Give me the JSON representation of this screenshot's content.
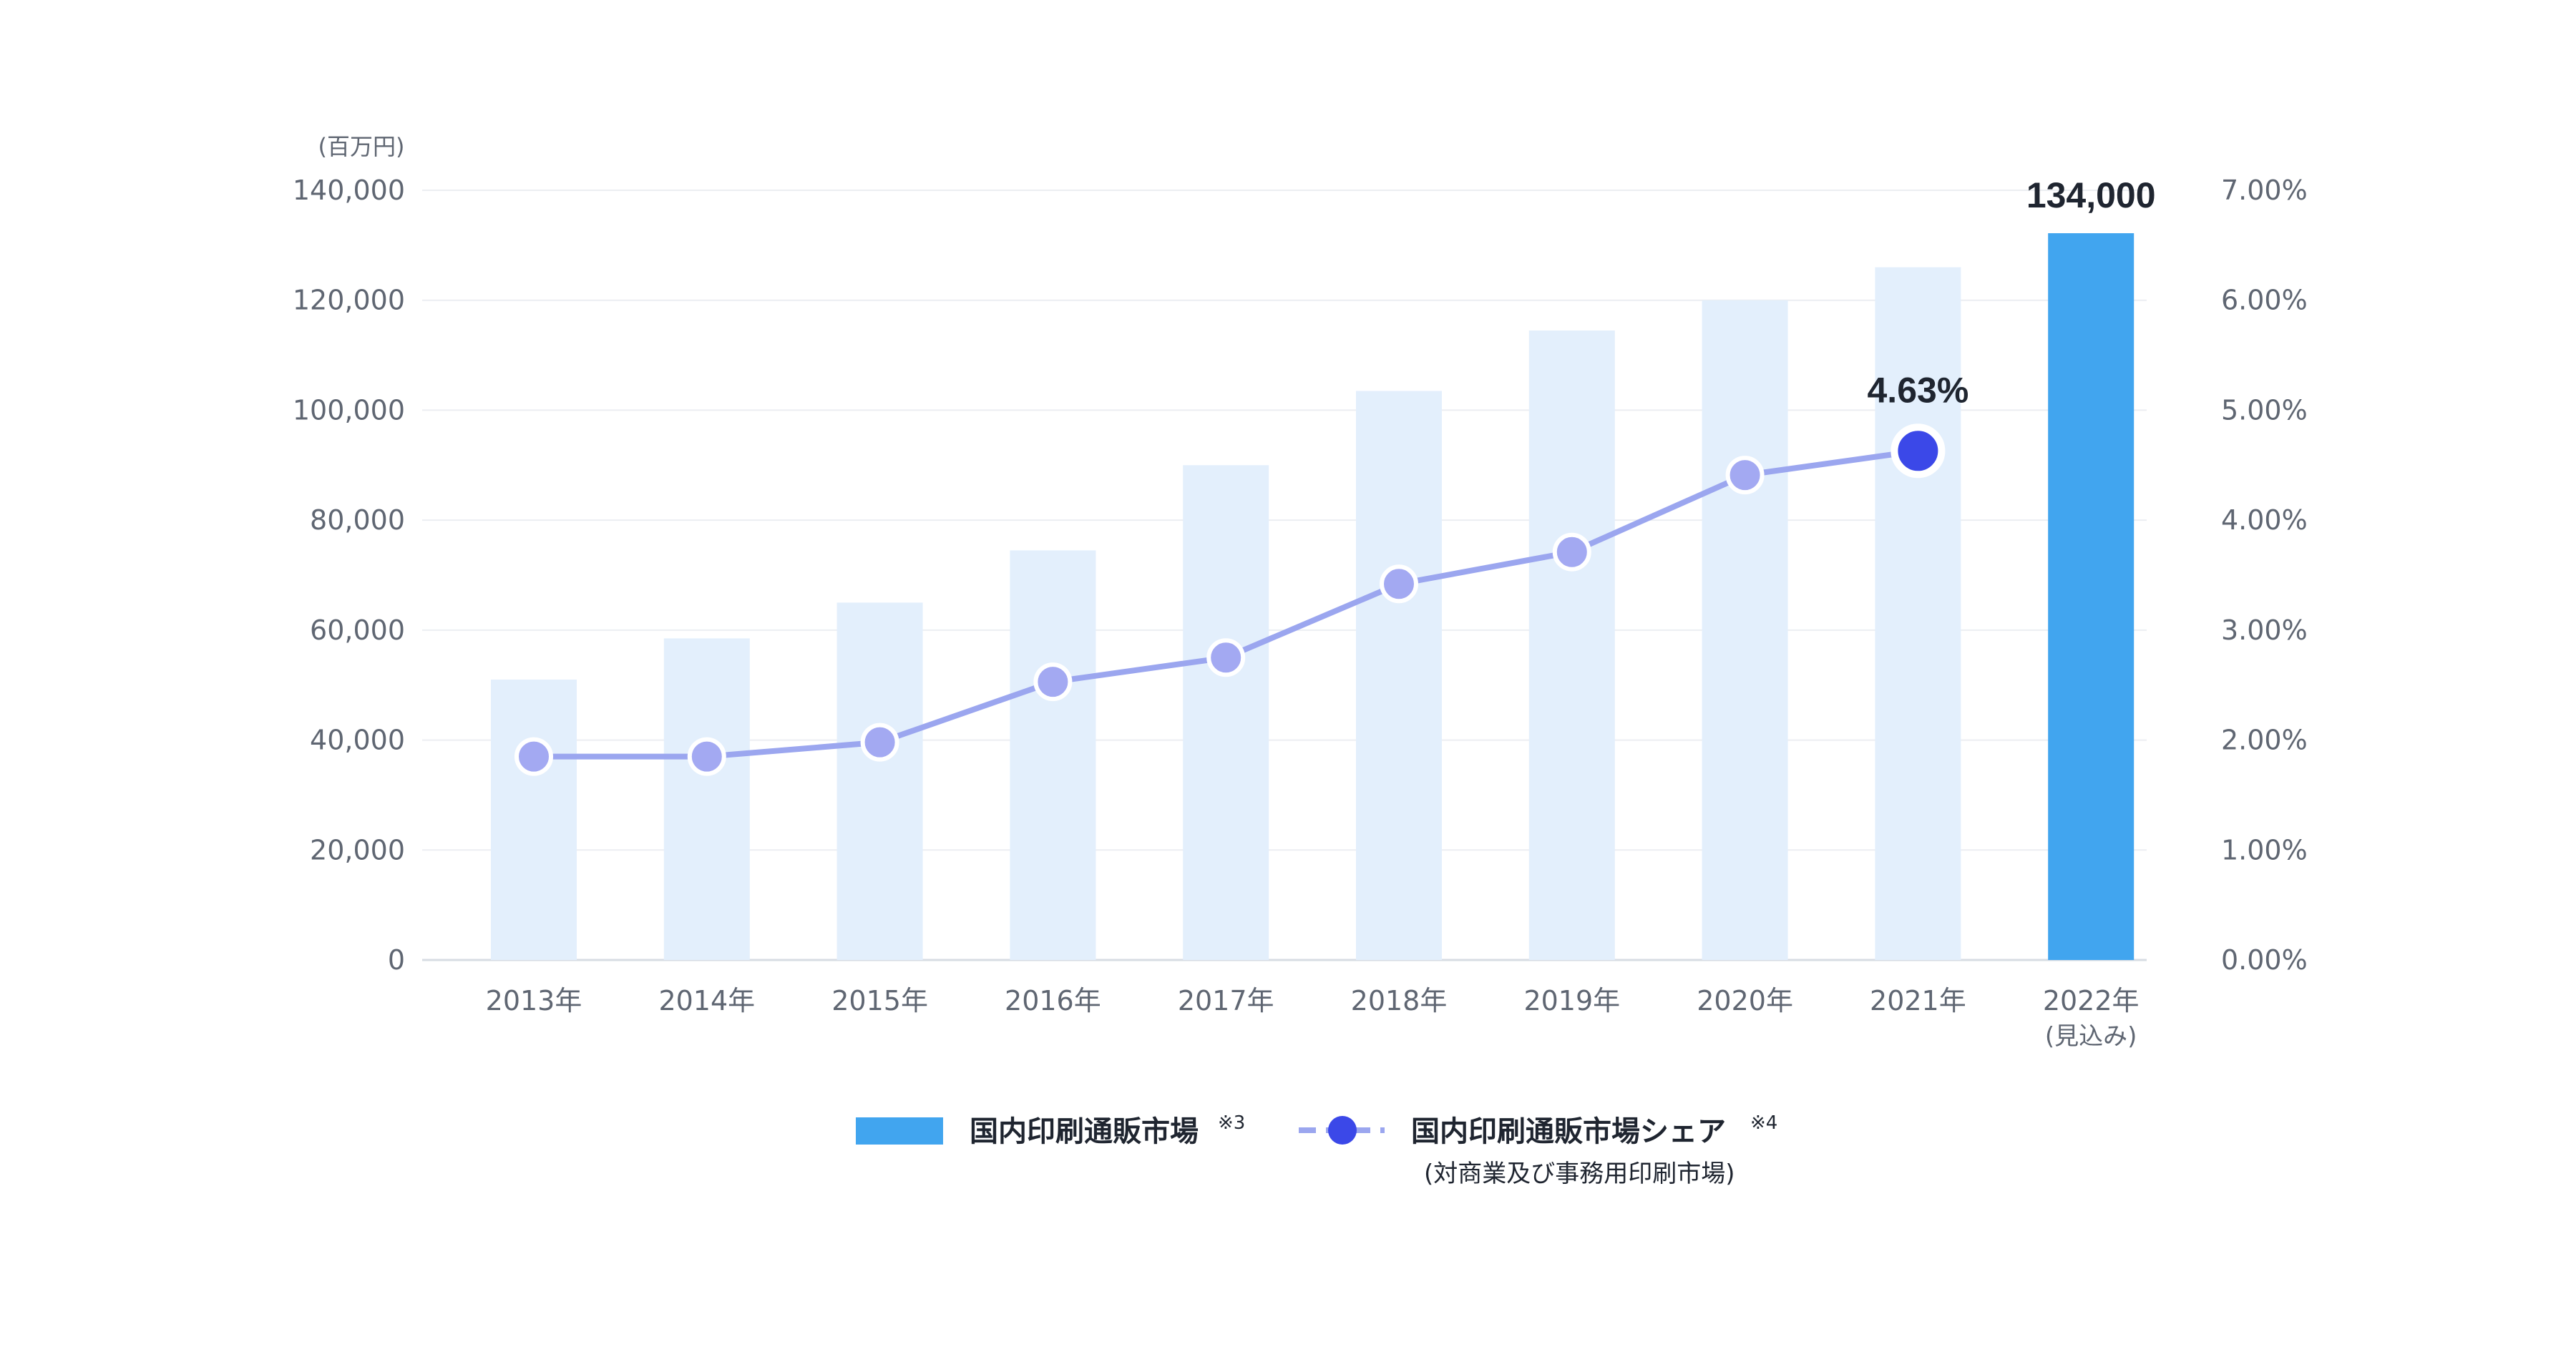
{
  "chart_data": {
    "type": "bar",
    "categories": [
      "2013年",
      "2014年",
      "2015年",
      "2016年",
      "2017年",
      "2018年",
      "2019年",
      "2020年",
      "2021年",
      "2022年"
    ],
    "category_sublabels": [
      "",
      "",
      "",
      "",
      "",
      "",
      "",
      "",
      "",
      "(見込み)"
    ],
    "series": [
      {
        "name": "国内印刷通販市場",
        "note": "※3",
        "type": "bar",
        "axis": "left",
        "values": [
          51000,
          58500,
          65000,
          74500,
          90000,
          103500,
          114500,
          120000,
          126000,
          134000
        ]
      },
      {
        "name": "国内印刷通販市場シェア",
        "note": "※4",
        "sublabel": "(対商業及び事務用印刷市場)",
        "type": "line",
        "axis": "right",
        "values": [
          1.85,
          1.85,
          1.98,
          2.53,
          2.75,
          3.42,
          3.71,
          4.41,
          4.63,
          null
        ]
      }
    ],
    "y_left": {
      "unit": "(百万円)",
      "ylim": [
        0,
        140000
      ],
      "ticks": [
        "0",
        "20,000",
        "40,000",
        "60,000",
        "80,000",
        "100,000",
        "120,000",
        "140,000"
      ]
    },
    "y_right": {
      "ylim": [
        0,
        7
      ],
      "ticks": [
        "0.00%",
        "1.00%",
        "2.00%",
        "3.00%",
        "4.00%",
        "5.00%",
        "6.00%",
        "7.00%"
      ]
    },
    "annotations": [
      {
        "series": 0,
        "index": 9,
        "text": "134,000"
      },
      {
        "series": 1,
        "index": 8,
        "text": "4.63%"
      }
    ],
    "grid": true,
    "legend_position": "bottom",
    "colors": {
      "bar_light": "#e3effc",
      "bar_highlight": "#41a5ef",
      "line": "#9ba6ef",
      "point": "#a3a9f2",
      "point_highlight": "#3b48e8",
      "grid": "#eceef2",
      "axis": "#d7dce3"
    }
  }
}
